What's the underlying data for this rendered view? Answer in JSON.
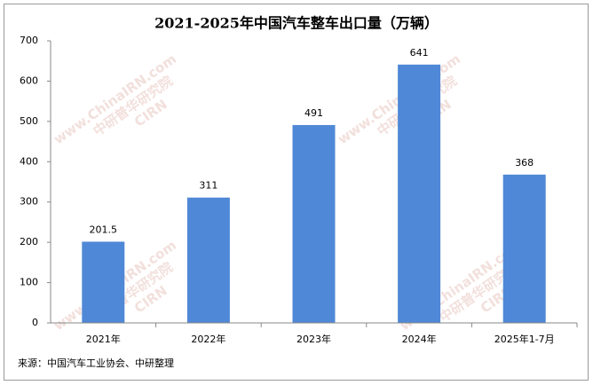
{
  "chart_data": {
    "type": "bar",
    "title": "2021-2025年中国汽车整车出口量（万辆）",
    "categories": [
      "2021年",
      "2022年",
      "2023年",
      "2024年",
      "2025年1-7月"
    ],
    "values": [
      201.5,
      311,
      491,
      641,
      368
    ],
    "color": "#4f88d6",
    "ylim": [
      0,
      700
    ],
    "yticks": [
      0,
      100,
      200,
      300,
      400,
      500,
      600,
      700
    ],
    "source": "来源：中国汽车工业协会、中研整理",
    "watermark": [
      "www.ChinaIRN.com",
      "中研普华研究院",
      "CIRN"
    ]
  }
}
